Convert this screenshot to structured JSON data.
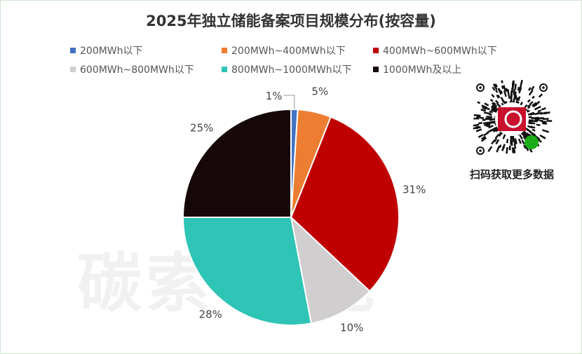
{
  "chart_data": {
    "type": "pie",
    "title": "2025年独立储能备案项目规模分布(按容量)",
    "categories": [
      "200MWh以下",
      "200MWh~400MWh以下",
      "400MWh~600MWh以下",
      "600MWh~800MWh以下",
      "800MWh~1000MWh以下",
      "1000MWh及以上"
    ],
    "values": [
      1,
      5,
      31,
      10,
      28,
      25
    ],
    "labels": [
      "1%",
      "5%",
      "31%",
      "10%",
      "28%",
      "25%"
    ],
    "colors": [
      "#4472C4",
      "#ED7D31",
      "#C00000",
      "#D0CECE",
      "#2EC4B6",
      "#160808"
    ],
    "legend_position": "top",
    "start_angle": "12 o'clock, clockwise"
  },
  "watermark": "碳索·储能",
  "qr": {
    "caption": "扫码获取更多数据",
    "logo_color": "#C8102E",
    "badge_color": "#1AAD19"
  }
}
